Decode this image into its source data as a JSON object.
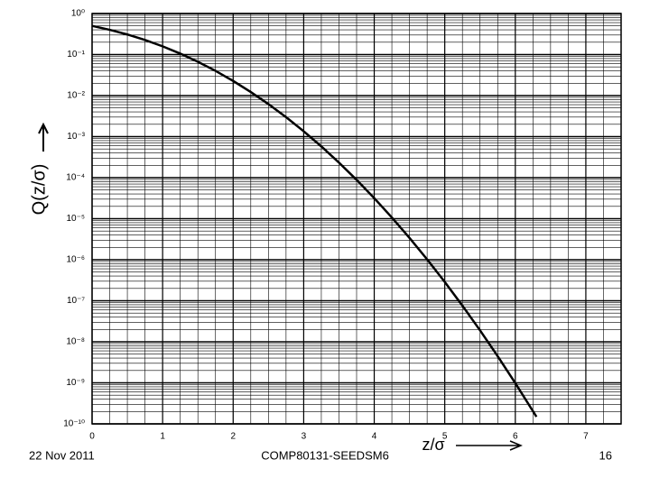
{
  "chart_data": {
    "type": "line",
    "x_label": "z/σ",
    "y_label": "Q(z/σ)",
    "series": [
      {
        "name": "Q(z/σ)",
        "color": "#000000",
        "x": [
          0,
          0.25,
          0.5,
          0.75,
          1,
          1.25,
          1.5,
          1.75,
          2,
          2.25,
          2.5,
          2.75,
          3,
          3.25,
          3.5,
          3.75,
          4,
          4.25,
          4.5,
          4.75,
          5,
          5.25,
          5.5,
          5.75,
          6,
          6.3
        ],
        "values": [
          0.5,
          0.4013,
          0.3085,
          0.2266,
          0.1587,
          0.1056,
          0.0668,
          0.0401,
          0.02275,
          0.01222,
          0.00621,
          0.00298,
          0.00135,
          0.000577,
          0.000233,
          8.84e-05,
          3.17e-05,
          1.07e-05,
          3.4e-06,
          1.02e-06,
          2.87e-07,
          7.6e-08,
          1.9e-08,
          4.46e-09,
          9.87e-10,
          1.49e-10
        ]
      }
    ],
    "xlim": [
      0,
      7.5
    ],
    "xticks": [
      0,
      1,
      2,
      3,
      4,
      5,
      6,
      7
    ],
    "ylim": [
      1e-10,
      1
    ],
    "log_y": true,
    "yticks": [
      {
        "value": 1,
        "label": "10⁰"
      },
      {
        "value": 0.1,
        "label": "10⁻¹"
      },
      {
        "value": 0.01,
        "label": "10⁻²"
      },
      {
        "value": 0.001,
        "label": "10⁻³"
      },
      {
        "value": 0.0001,
        "label": "10⁻⁴"
      },
      {
        "value": 1e-05,
        "label": "10⁻⁵"
      },
      {
        "value": 1e-06,
        "label": "10⁻⁶"
      },
      {
        "value": 1e-07,
        "label": "10⁻⁷"
      },
      {
        "value": 1e-08,
        "label": "10⁻⁸"
      },
      {
        "value": 1e-09,
        "label": "10⁻⁹"
      },
      {
        "value": 1e-10,
        "label": "10⁻¹⁰"
      }
    ],
    "grid": true,
    "minor_grid": true
  },
  "footer": {
    "date": "22 Nov 2011",
    "course": "COMP80131-SEEDSM6",
    "page": "16"
  }
}
